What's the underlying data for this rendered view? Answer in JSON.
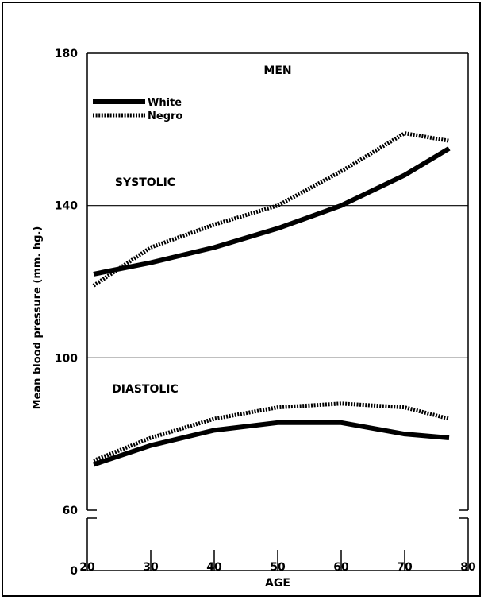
{
  "chart_data": {
    "type": "line",
    "title": "MEN",
    "xlabel": "AGE",
    "ylabel": "Mean blood pressure  (mm. hg.)",
    "x_ticks": [
      20,
      30,
      40,
      50,
      60,
      70,
      80
    ],
    "y_ticks": [
      0,
      60,
      100,
      140,
      180
    ],
    "xlim": [
      20,
      80
    ],
    "ylim": [
      60,
      180
    ],
    "axis_break": "between 0 and 60 on the y-axis",
    "annotations": [
      "SYSTOLIC",
      "DIASTOLIC"
    ],
    "legend": [
      {
        "name": "White",
        "style": "solid"
      },
      {
        "name": "Negro",
        "style": "dotted"
      }
    ],
    "series": [
      {
        "name": "White",
        "measure": "SYSTOLIC",
        "style": "solid",
        "x": [
          21,
          30,
          40,
          50,
          60,
          70,
          77
        ],
        "y": [
          122,
          125,
          129,
          134,
          140,
          148,
          155
        ]
      },
      {
        "name": "Negro",
        "measure": "SYSTOLIC",
        "style": "dotted",
        "x": [
          21,
          30,
          40,
          50,
          60,
          70,
          77
        ],
        "y": [
          119,
          129,
          135,
          140,
          149,
          159,
          157
        ]
      },
      {
        "name": "White",
        "measure": "DIASTOLIC",
        "style": "solid",
        "x": [
          21,
          30,
          40,
          50,
          60,
          70,
          77
        ],
        "y": [
          72,
          77,
          81,
          83,
          83,
          80,
          79
        ]
      },
      {
        "name": "Negro",
        "measure": "DIASTOLIC",
        "style": "dotted",
        "x": [
          21,
          30,
          40,
          50,
          60,
          70,
          77
        ],
        "y": [
          73,
          79,
          84,
          87,
          88,
          87,
          84
        ]
      }
    ],
    "reference_lines_y": [
      100,
      140
    ],
    "grid": false
  }
}
